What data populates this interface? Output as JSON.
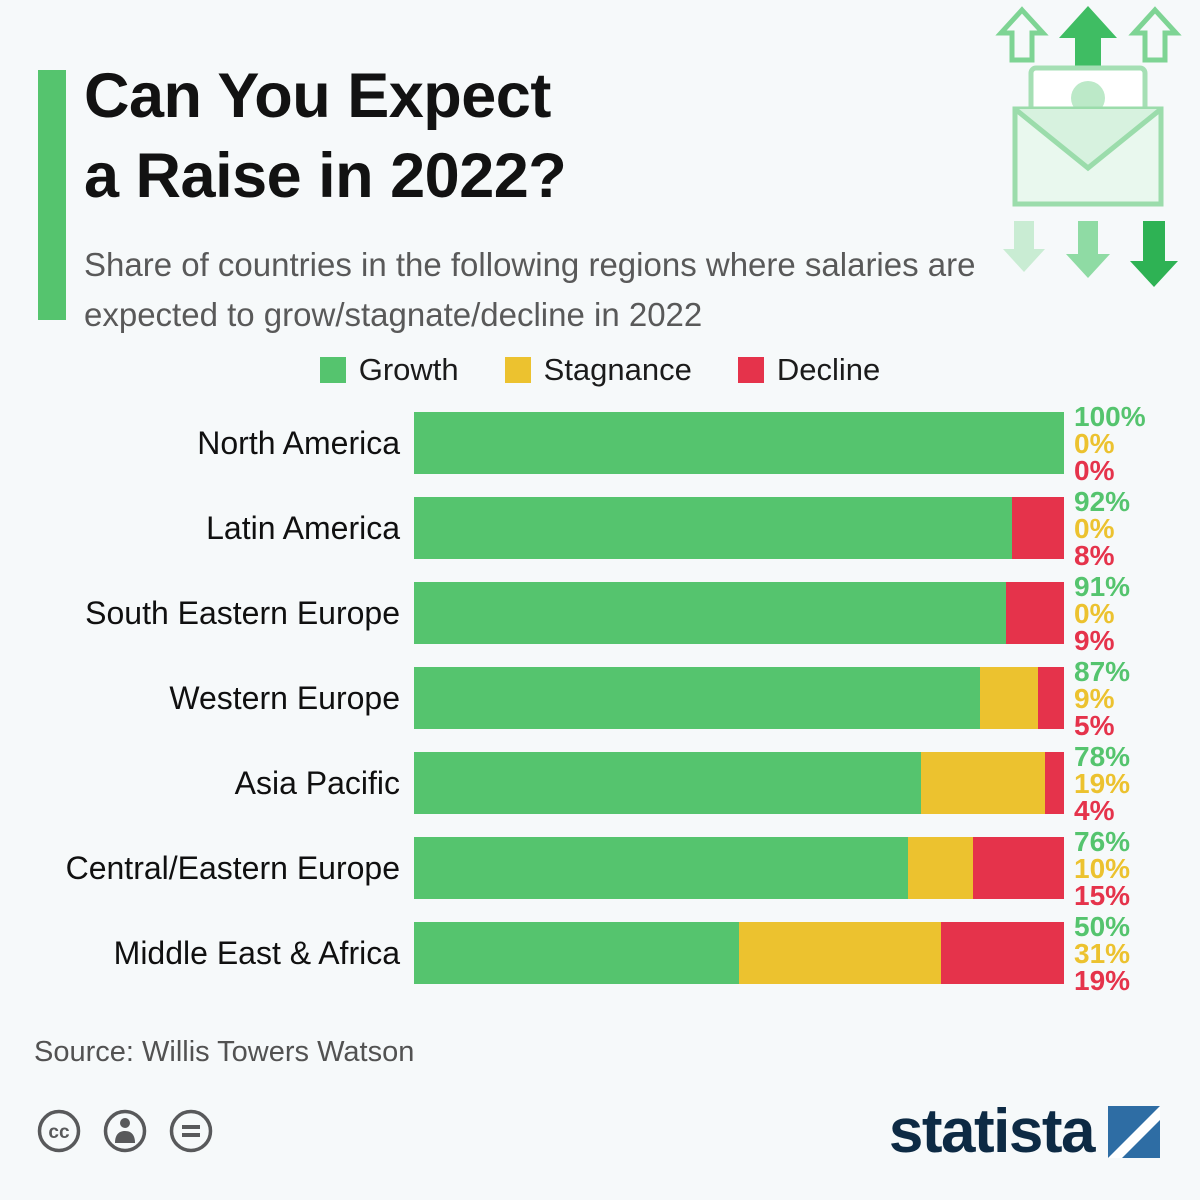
{
  "page": {
    "background": "#f6f9fa"
  },
  "header": {
    "title_line1": "Can You Expect",
    "title_line2": "a Raise in 2022?",
    "subtitle": "Share of countries in the following regions where salaries are expected to grow/stagnate/decline in 2022",
    "accent_color": "#55c46e",
    "hero_icon": "money-envelope-raise-arrows-icon"
  },
  "legend": [
    {
      "label": "Growth",
      "color": "#55c46e"
    },
    {
      "label": "Stagnance",
      "color": "#ecc22f"
    },
    {
      "label": "Decline",
      "color": "#e5334b"
    }
  ],
  "chart_data": {
    "type": "bar",
    "orientation": "horizontal",
    "stacked": true,
    "value_suffix": "%",
    "xlim": [
      0,
      100
    ],
    "categories": [
      "North America",
      "Latin America",
      "South Eastern Europe",
      "Western Europe",
      "Asia Pacific",
      "Central/Eastern Europe",
      "Middle East & Africa"
    ],
    "series": [
      {
        "name": "Growth",
        "color": "#55c46e",
        "values": [
          100,
          92,
          91,
          87,
          78,
          76,
          50
        ]
      },
      {
        "name": "Stagnance",
        "color": "#ecc22f",
        "values": [
          0,
          0,
          0,
          9,
          19,
          10,
          31
        ]
      },
      {
        "name": "Decline",
        "color": "#e5334b",
        "values": [
          0,
          8,
          9,
          5,
          4,
          15,
          19
        ]
      }
    ]
  },
  "footer": {
    "source": "Source: Willis Towers Watson",
    "brand": "statista",
    "brand_navy": "#0d2a44",
    "brand_blue": "#2e6da4",
    "license_icons": [
      "creative-commons-icon",
      "attribution-person-icon",
      "equals-icon"
    ]
  }
}
